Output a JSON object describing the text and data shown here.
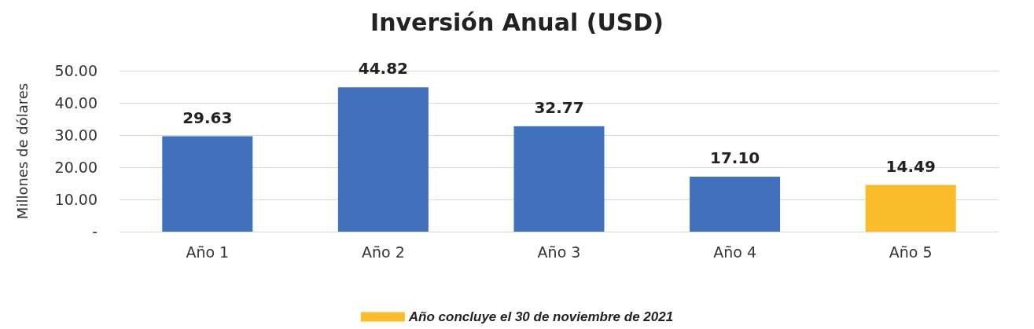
{
  "chart_data": {
    "type": "bar",
    "title": "Inversión Anual (USD)",
    "ylabel": "Millones de dólares",
    "categories": [
      "Año 1",
      "Año 2",
      "Año 3",
      "Año 4",
      "Año 5"
    ],
    "series": [
      {
        "color": "#4170bd",
        "values": [
          29.63,
          44.82,
          32.77,
          17.1,
          null
        ],
        "value_labels": [
          "29.63",
          "44.82",
          "32.77",
          "17.10",
          null
        ]
      },
      {
        "name": "Año concluye el 30 de noviembre de 2021",
        "color": "#fbbc2c",
        "values": [
          null,
          null,
          null,
          null,
          14.49
        ],
        "value_labels": [
          null,
          null,
          null,
          null,
          "14.49"
        ]
      }
    ],
    "stacked": true,
    "ylim": [
      0,
      50
    ],
    "yticks": [
      {
        "value": 0,
        "label": "-"
      },
      {
        "value": 10,
        "label": "10.00"
      },
      {
        "value": 20,
        "label": "20.00"
      },
      {
        "value": 30,
        "label": "30.00"
      },
      {
        "value": 40,
        "label": "40.00"
      },
      {
        "value": 50,
        "label": "50.00"
      }
    ],
    "grid": "y",
    "legend": "bottom"
  }
}
